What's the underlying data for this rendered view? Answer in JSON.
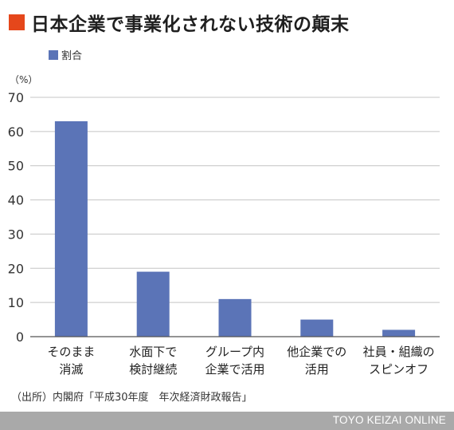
{
  "title": "日本企業で事業化されない技術の顛末",
  "accent_color": "#e5471b",
  "bar_color": "#5b74b7",
  "chart_data": {
    "type": "bar",
    "title": "日本企業で事業化されない技術の顛末",
    "unit_label": "（%）",
    "legend": {
      "position": "top-left",
      "entries": [
        "割合"
      ]
    },
    "categories": [
      [
        "そのまま",
        "消滅"
      ],
      [
        "水面下で",
        "検討継続"
      ],
      [
        "グループ内",
        "企業で活用"
      ],
      [
        "他企業での",
        "活用"
      ],
      [
        "社員・組織の",
        "スピンオフ"
      ]
    ],
    "series": [
      {
        "name": "割合",
        "values": [
          63,
          19,
          11,
          5,
          2
        ]
      }
    ],
    "yticks": [
      0,
      10,
      20,
      30,
      40,
      50,
      60,
      70
    ],
    "ylim": [
      0,
      70
    ],
    "grid": true
  },
  "source": "（出所）内閣府「平成30年度　年次経済財政報告」",
  "footer": {
    "brand": "TOYO KEIZAI ONLINE"
  }
}
